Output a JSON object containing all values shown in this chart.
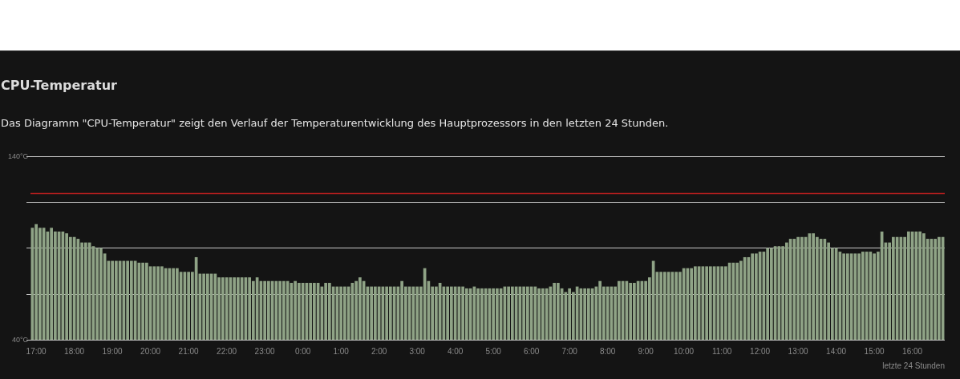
{
  "chart_data": {
    "type": "bar",
    "title": "CPU-Temperatur",
    "subtitle": "Das Diagramm \"CPU-Temperatur\" zeigt den Verlauf der Temperaturentwicklung des Hauptprozessors in den letzten 24 Stunden.",
    "annotations": [
      "letzte 24 Stunden"
    ],
    "categories": [
      null,
      "17:00",
      null,
      null,
      null,
      null,
      null,
      null,
      null,
      null,
      null,
      "18:00",
      null,
      null,
      null,
      null,
      null,
      null,
      null,
      null,
      null,
      "19:00",
      null,
      null,
      null,
      null,
      null,
      null,
      null,
      null,
      null,
      "20:00",
      null,
      null,
      null,
      null,
      null,
      null,
      null,
      null,
      null,
      "21:00",
      null,
      null,
      null,
      null,
      null,
      null,
      null,
      null,
      null,
      "22:00",
      null,
      null,
      null,
      null,
      null,
      null,
      null,
      null,
      null,
      "23:00",
      null,
      null,
      null,
      null,
      null,
      null,
      null,
      null,
      null,
      "0:00",
      null,
      null,
      null,
      null,
      null,
      null,
      null,
      null,
      null,
      "1:00",
      null,
      null,
      null,
      null,
      null,
      null,
      null,
      null,
      null,
      "2:00",
      null,
      null,
      null,
      null,
      null,
      null,
      null,
      null,
      null,
      "3:00",
      null,
      null,
      null,
      null,
      null,
      null,
      null,
      null,
      null,
      "4:00",
      null,
      null,
      null,
      null,
      null,
      null,
      null,
      null,
      null,
      "5:00",
      null,
      null,
      null,
      null,
      null,
      null,
      null,
      null,
      null,
      "6:00",
      null,
      null,
      null,
      null,
      null,
      null,
      null,
      null,
      null,
      "7:00",
      null,
      null,
      null,
      null,
      null,
      null,
      null,
      null,
      null,
      "8:00",
      null,
      null,
      null,
      null,
      null,
      null,
      null,
      null,
      null,
      "9:00",
      null,
      null,
      null,
      null,
      null,
      null,
      null,
      null,
      null,
      "10:00",
      null,
      null,
      null,
      null,
      null,
      null,
      null,
      null,
      null,
      "11:00",
      null,
      null,
      null,
      null,
      null,
      null,
      null,
      null,
      null,
      "12:00",
      null,
      null,
      null,
      null,
      null,
      null,
      null,
      null,
      null,
      "13:00",
      null,
      null,
      null,
      null,
      null,
      null,
      null,
      null,
      null,
      "14:00",
      null,
      null,
      null,
      null,
      null,
      null,
      null,
      null,
      null,
      "15:00",
      null,
      null,
      null,
      null,
      null,
      null,
      null,
      null,
      null,
      "16:00",
      null,
      null,
      null,
      null,
      null,
      null,
      null,
      null
    ],
    "values": [
      101,
      103,
      101,
      101,
      99,
      101,
      99,
      99,
      99,
      98,
      96,
      96,
      95,
      93,
      93,
      93,
      91,
      90,
      90,
      87,
      83,
      83,
      83,
      83,
      83,
      83,
      83,
      83,
      82,
      82,
      82,
      80,
      80,
      80,
      80,
      79,
      79,
      79,
      79,
      77,
      77,
      77,
      77,
      85,
      76,
      76,
      76,
      76,
      76,
      74,
      74,
      74,
      74,
      74,
      74,
      74,
      74,
      74,
      72,
      74,
      72,
      72,
      72,
      72,
      72,
      72,
      72,
      72,
      71,
      72,
      71,
      71,
      71,
      71,
      71,
      71,
      69,
      71,
      71,
      69,
      69,
      69,
      69,
      69,
      71,
      72,
      74,
      72,
      69,
      69,
      69,
      69,
      69,
      69,
      69,
      69,
      69,
      72,
      69,
      69,
      69,
      69,
      69,
      79,
      72,
      69,
      69,
      71,
      69,
      69,
      69,
      69,
      69,
      69,
      68,
      68,
      69,
      68,
      68,
      68,
      68,
      68,
      68,
      68,
      69,
      69,
      69,
      69,
      69,
      69,
      69,
      69,
      69,
      68,
      68,
      68,
      69,
      71,
      71,
      68,
      66,
      68,
      66,
      69,
      68,
      68,
      68,
      68,
      69,
      72,
      69,
      69,
      69,
      69,
      72,
      72,
      72,
      71,
      71,
      72,
      72,
      72,
      74,
      83,
      77,
      77,
      77,
      77,
      77,
      77,
      77,
      79,
      79,
      79,
      80,
      80,
      80,
      80,
      80,
      80,
      80,
      80,
      80,
      82,
      82,
      82,
      83,
      85,
      85,
      87,
      87,
      88,
      88,
      90,
      90,
      91,
      91,
      91,
      93,
      95,
      95,
      96,
      96,
      96,
      98,
      98,
      96,
      95,
      95,
      93,
      90,
      90,
      88,
      87,
      87,
      87,
      87,
      87,
      88,
      88,
      88,
      87,
      88,
      99,
      93,
      93,
      96,
      96,
      96,
      96,
      99,
      99,
      99,
      99,
      98,
      95,
      95,
      95,
      96,
      96
    ],
    "color": "#8fa386",
    "ylim": [
      40,
      140
    ],
    "yticks": [
      {
        "value": 40,
        "label": "40°C"
      },
      {
        "value": 65,
        "label": null
      },
      {
        "value": 90,
        "label": null
      },
      {
        "value": 115,
        "label": null
      },
      {
        "value": 140,
        "label": "140°C"
      }
    ],
    "grid": true,
    "ref_lines": [
      {
        "axis": "y",
        "value": 120,
        "label": null,
        "color": "#b01e1e"
      }
    ]
  }
}
